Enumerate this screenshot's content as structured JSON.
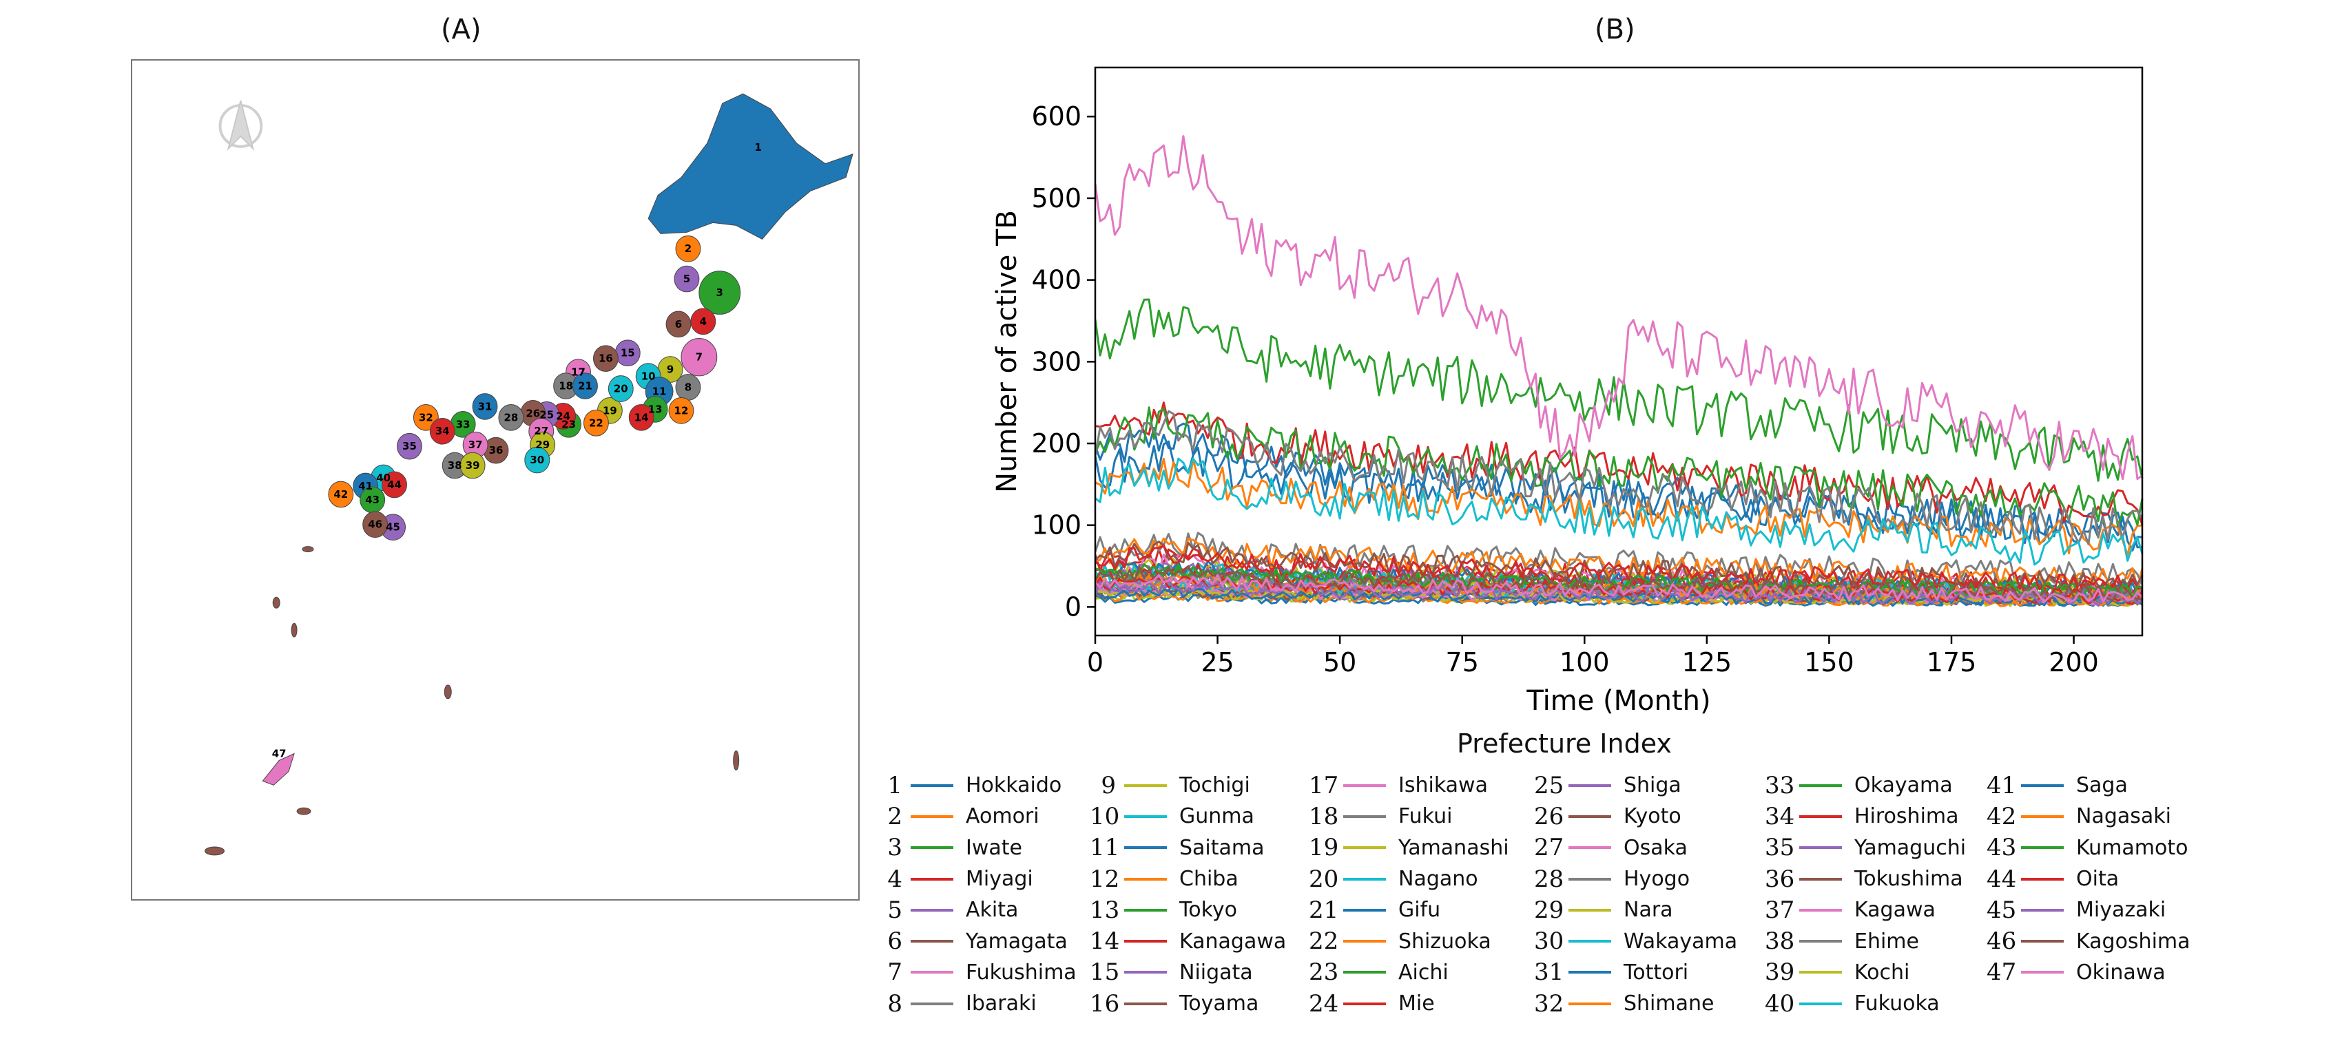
{
  "panel_a": {
    "title": "(A)",
    "map_labels": [
      "1",
      "2",
      "3",
      "4",
      "5",
      "6",
      "7",
      "8",
      "9",
      "10",
      "11",
      "12",
      "13",
      "14",
      "15",
      "16",
      "17",
      "18",
      "19",
      "20",
      "21",
      "22",
      "23",
      "24",
      "25",
      "26",
      "27",
      "28",
      "29",
      "30",
      "31",
      "32",
      "33",
      "34",
      "35",
      "36",
      "37",
      "38",
      "39",
      "40",
      "41",
      "42",
      "43",
      "44",
      "45",
      "46",
      "47"
    ]
  },
  "panel_b": {
    "title": "(B)"
  },
  "colors": {
    "tab10": [
      "#1f77b4",
      "#ff7f0e",
      "#2ca02c",
      "#d62728",
      "#9467bd",
      "#8c564b",
      "#e377c2",
      "#7f7f7f",
      "#bcbd22",
      "#17becf"
    ]
  },
  "chart_data": {
    "type": "line",
    "title": "(B)",
    "xlabel": "Time (Month)",
    "ylabel": "Number of active TB",
    "xlim": [
      0,
      214
    ],
    "ylim": [
      -35,
      660
    ],
    "xticks": [
      0,
      25,
      50,
      75,
      100,
      125,
      150,
      175,
      200
    ],
    "yticks": [
      0,
      100,
      200,
      300,
      400,
      500,
      600
    ],
    "n_months": 215,
    "legend_title": "Prefecture Index",
    "series": [
      {
        "index": "1",
        "name": "Hokkaido",
        "start": 190,
        "end": 90,
        "amp": 24
      },
      {
        "index": "2",
        "name": "Aomori",
        "start": 32,
        "end": 14,
        "amp": 9
      },
      {
        "index": "3",
        "name": "Iwate",
        "start": 24,
        "end": 10,
        "amp": 8
      },
      {
        "index": "4",
        "name": "Miyagi",
        "start": 55,
        "end": 25,
        "amp": 13
      },
      {
        "index": "5",
        "name": "Akita",
        "start": 22,
        "end": 9,
        "amp": 7
      },
      {
        "index": "6",
        "name": "Yamagata",
        "start": 20,
        "end": 8,
        "amp": 7
      },
      {
        "index": "7",
        "name": "Fukushima",
        "start": 48,
        "end": 22,
        "amp": 12
      },
      {
        "index": "8",
        "name": "Ibaraki",
        "start": 72,
        "end": 38,
        "amp": 15
      },
      {
        "index": "9",
        "name": "Tochigi",
        "start": 45,
        "end": 22,
        "amp": 11
      },
      {
        "index": "10",
        "name": "Gunma",
        "start": 42,
        "end": 20,
        "amp": 11
      },
      {
        "index": "11",
        "name": "Saitama",
        "start": 170,
        "end": 92,
        "amp": 23
      },
      {
        "index": "12",
        "name": "Chiba",
        "start": 150,
        "end": 80,
        "amp": 21
      },
      {
        "index": "13",
        "name": "Tokyo",
        "start": 330,
        "end": 175,
        "amp": 30
      },
      {
        "index": "14",
        "name": "Kanagawa",
        "start": 215,
        "end": 120,
        "amp": 24
      },
      {
        "index": "15",
        "name": "Niigata",
        "start": 40,
        "end": 17,
        "amp": 11
      },
      {
        "index": "16",
        "name": "Toyama",
        "start": 22,
        "end": 9,
        "amp": 7
      },
      {
        "index": "17",
        "name": "Ishikawa",
        "start": 24,
        "end": 10,
        "amp": 8
      },
      {
        "index": "18",
        "name": "Fukui",
        "start": 15,
        "end": 6,
        "amp": 6
      },
      {
        "index": "19",
        "name": "Yamanashi",
        "start": 14,
        "end": 6,
        "amp": 6
      },
      {
        "index": "20",
        "name": "Nagano",
        "start": 36,
        "end": 16,
        "amp": 10
      },
      {
        "index": "21",
        "name": "Gifu",
        "start": 44,
        "end": 20,
        "amp": 11
      },
      {
        "index": "22",
        "name": "Shizuoka",
        "start": 68,
        "end": 33,
        "amp": 14
      },
      {
        "index": "23",
        "name": "Aichi",
        "start": 210,
        "end": 120,
        "amp": 25
      },
      {
        "index": "24",
        "name": "Mie",
        "start": 40,
        "end": 18,
        "amp": 10
      },
      {
        "index": "25",
        "name": "Shiga",
        "start": 24,
        "end": 11,
        "amp": 8
      },
      {
        "index": "26",
        "name": "Kyoto",
        "start": 62,
        "end": 28,
        "amp": 13
      },
      {
        "index": "27",
        "name": "Osaka",
        "start": 490,
        "end": 175,
        "amp": 35
      },
      {
        "index": "28",
        "name": "Hyogo",
        "start": 200,
        "end": 95,
        "amp": 24
      },
      {
        "index": "29",
        "name": "Nara",
        "start": 28,
        "end": 12,
        "amp": 9
      },
      {
        "index": "30",
        "name": "Wakayama",
        "start": 22,
        "end": 10,
        "amp": 8
      },
      {
        "index": "31",
        "name": "Tottori",
        "start": 10,
        "end": 4,
        "amp": 5
      },
      {
        "index": "32",
        "name": "Shimane",
        "start": 12,
        "end": 5,
        "amp": 5
      },
      {
        "index": "33",
        "name": "Okayama",
        "start": 40,
        "end": 18,
        "amp": 10
      },
      {
        "index": "34",
        "name": "Hiroshima",
        "start": 58,
        "end": 26,
        "amp": 13
      },
      {
        "index": "35",
        "name": "Yamaguchi",
        "start": 28,
        "end": 12,
        "amp": 9
      },
      {
        "index": "36",
        "name": "Tokushima",
        "start": 16,
        "end": 7,
        "amp": 6
      },
      {
        "index": "37",
        "name": "Kagawa",
        "start": 18,
        "end": 8,
        "amp": 6
      },
      {
        "index": "38",
        "name": "Ehime",
        "start": 30,
        "end": 13,
        "amp": 9
      },
      {
        "index": "39",
        "name": "Kochi",
        "start": 16,
        "end": 7,
        "amp": 6
      },
      {
        "index": "40",
        "name": "Fukuoka",
        "start": 150,
        "end": 65,
        "amp": 22
      },
      {
        "index": "41",
        "name": "Saga",
        "start": 16,
        "end": 7,
        "amp": 6
      },
      {
        "index": "42",
        "name": "Nagasaki",
        "start": 30,
        "end": 13,
        "amp": 9
      },
      {
        "index": "43",
        "name": "Kumamoto",
        "start": 40,
        "end": 18,
        "amp": 10
      },
      {
        "index": "44",
        "name": "Oita",
        "start": 28,
        "end": 12,
        "amp": 9
      },
      {
        "index": "45",
        "name": "Miyazaki",
        "start": 22,
        "end": 9,
        "amp": 8
      },
      {
        "index": "46",
        "name": "Kagoshima",
        "start": 38,
        "end": 16,
        "amp": 10
      },
      {
        "index": "47",
        "name": "Okinawa",
        "start": 30,
        "end": 13,
        "amp": 9
      }
    ]
  }
}
